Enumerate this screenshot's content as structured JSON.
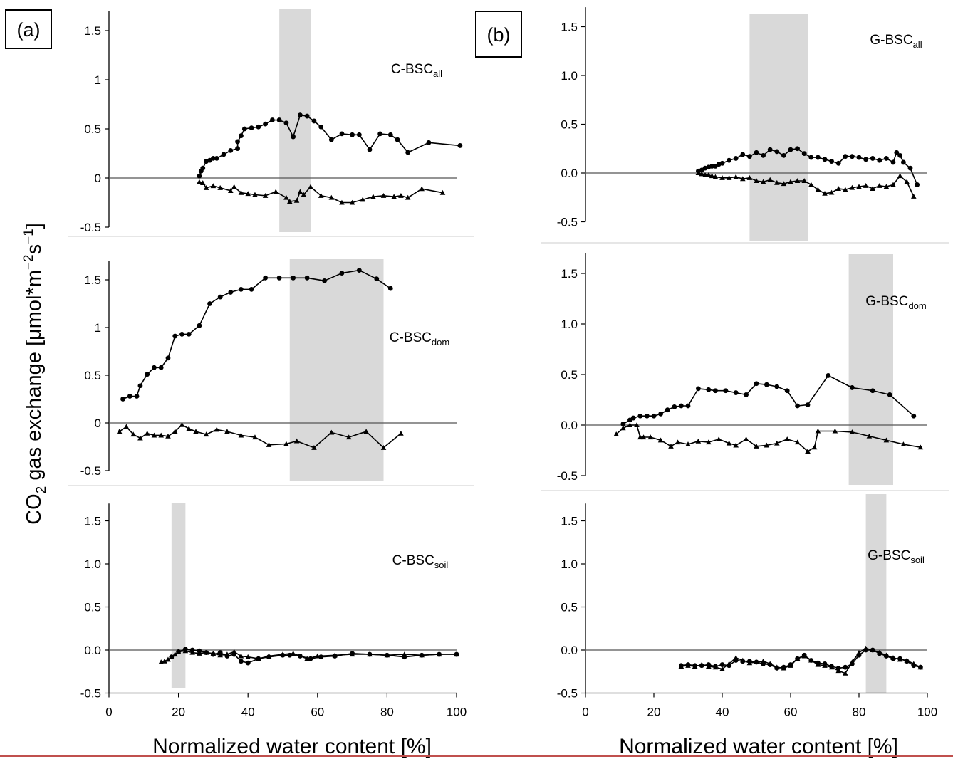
{
  "figure": {
    "y_title_main": "CO",
    "y_title_sub": "2",
    "y_title_rest": " gas exchange [μmol*m",
    "y_title_sup1": "−2",
    "y_title_s": "s",
    "y_title_sup2": "−1",
    "y_title_end": "]",
    "x_title_a": "Normalized water content [%]",
    "x_title_b": "Normalized water content [%]",
    "colors": {
      "grey_band": "#d9d9d9",
      "line": "#000000",
      "footer_rule": "#c0504d"
    }
  },
  "chart_data": [
    {
      "column": "a",
      "tag": "(a)",
      "label_main": "C-BSC",
      "label_sub": "all",
      "type": "line",
      "xlim": [
        0,
        100
      ],
      "ylim": [
        -0.5,
        1.7
      ],
      "yticks": [
        "-0.5",
        "0",
        "0.5",
        "1",
        "1.5"
      ],
      "xticks": [],
      "highlight_x": [
        49,
        58
      ],
      "series": [
        {
          "marker": "circle",
          "x": [
            26,
            26.5,
            27,
            28,
            29,
            30,
            31,
            33,
            35,
            37,
            37,
            38,
            39,
            41,
            43,
            45,
            47,
            49,
            51,
            53,
            55,
            57,
            59,
            61,
            64,
            67,
            70,
            72,
            75,
            78,
            81,
            83,
            86,
            92,
            101
          ],
          "y": [
            0.02,
            0.07,
            0.1,
            0.17,
            0.18,
            0.2,
            0.2,
            0.24,
            0.28,
            0.3,
            0.37,
            0.43,
            0.5,
            0.51,
            0.52,
            0.55,
            0.59,
            0.59,
            0.56,
            0.42,
            0.64,
            0.63,
            0.58,
            0.52,
            0.39,
            0.45,
            0.44,
            0.44,
            0.29,
            0.45,
            0.44,
            0.39,
            0.26,
            0.36,
            0.33
          ]
        },
        {
          "marker": "triangle",
          "x": [
            26,
            27,
            28,
            30,
            32,
            35,
            36,
            38,
            40,
            42,
            45,
            48,
            51,
            52,
            54,
            55,
            56,
            58,
            61,
            64,
            67,
            70,
            73,
            76,
            79,
            82,
            84,
            86,
            90,
            96
          ],
          "y": [
            -0.04,
            -0.05,
            -0.1,
            -0.08,
            -0.1,
            -0.13,
            -0.09,
            -0.15,
            -0.16,
            -0.17,
            -0.18,
            -0.14,
            -0.2,
            -0.24,
            -0.23,
            -0.14,
            -0.17,
            -0.09,
            -0.18,
            -0.2,
            -0.25,
            -0.25,
            -0.22,
            -0.19,
            -0.18,
            -0.19,
            -0.18,
            -0.2,
            -0.11,
            -0.15
          ]
        }
      ]
    },
    {
      "column": "a",
      "tag": "",
      "label_main": "C-BSC",
      "label_sub": "dom",
      "type": "line",
      "xlim": [
        0,
        100
      ],
      "ylim": [
        -0.5,
        1.7
      ],
      "yticks": [
        "-0.5",
        "0",
        "0.5",
        "1",
        "1.5"
      ],
      "xticks": [],
      "highlight_x": [
        52,
        79
      ],
      "series": [
        {
          "marker": "circle",
          "x": [
            4,
            6,
            8,
            9,
            11,
            13,
            15,
            17,
            19,
            21,
            23,
            26,
            29,
            32,
            35,
            38,
            41,
            45,
            49,
            53,
            57,
            62,
            67,
            72,
            77,
            81
          ],
          "y": [
            0.25,
            0.28,
            0.28,
            0.39,
            0.51,
            0.58,
            0.58,
            0.68,
            0.91,
            0.93,
            0.93,
            1.02,
            1.25,
            1.32,
            1.37,
            1.4,
            1.4,
            1.52,
            1.52,
            1.52,
            1.52,
            1.49,
            1.57,
            1.6,
            1.51,
            1.41
          ]
        },
        {
          "marker": "triangle",
          "x": [
            3,
            5,
            7,
            9,
            11,
            13,
            15,
            17,
            19,
            21,
            23,
            25,
            28,
            31,
            34,
            38,
            42,
            46,
            51,
            54,
            59,
            64,
            69,
            74,
            79,
            84
          ],
          "y": [
            -0.09,
            -0.04,
            -0.12,
            -0.16,
            -0.11,
            -0.13,
            -0.13,
            -0.14,
            -0.09,
            -0.02,
            -0.06,
            -0.09,
            -0.12,
            -0.07,
            -0.09,
            -0.13,
            -0.15,
            -0.23,
            -0.22,
            -0.19,
            -0.26,
            -0.1,
            -0.15,
            -0.09,
            -0.26,
            -0.11
          ]
        }
      ]
    },
    {
      "column": "a",
      "tag": "",
      "label_main": "C-BSC",
      "label_sub": "soil",
      "type": "line",
      "xlim": [
        0,
        100
      ],
      "ylim": [
        -0.5,
        1.7
      ],
      "yticks": [
        "-0.5",
        "0.0",
        "0.5",
        "1.0",
        "1.5"
      ],
      "xticks": [
        "0",
        "20",
        "40",
        "60",
        "80",
        "100"
      ],
      "highlight_x": [
        18,
        22
      ],
      "series": [
        {
          "marker": "circle",
          "x": [
            18,
            20,
            22,
            24,
            26,
            28,
            30,
            32,
            34,
            36,
            38,
            40,
            43,
            46,
            50,
            52,
            55,
            58,
            61,
            65,
            70,
            75,
            80,
            85,
            90,
            95,
            100
          ],
          "y": [
            -0.08,
            -0.02,
            0.01,
            0.0,
            -0.01,
            -0.03,
            -0.05,
            -0.03,
            -0.07,
            -0.05,
            -0.13,
            -0.15,
            -0.1,
            -0.08,
            -0.06,
            -0.06,
            -0.07,
            -0.1,
            -0.08,
            -0.07,
            -0.04,
            -0.05,
            -0.06,
            -0.08,
            -0.06,
            -0.05,
            -0.05
          ]
        },
        {
          "marker": "triangle",
          "x": [
            15,
            16,
            17,
            18,
            19,
            20,
            22,
            24,
            26,
            28,
            30,
            32,
            34,
            36,
            38,
            40,
            43,
            46,
            50,
            53,
            57,
            60,
            65,
            70,
            75,
            80,
            85,
            90,
            95,
            100
          ],
          "y": [
            -0.14,
            -0.13,
            -0.11,
            -0.08,
            -0.05,
            -0.02,
            -0.01,
            -0.03,
            -0.04,
            -0.03,
            -0.04,
            -0.06,
            -0.05,
            -0.02,
            -0.07,
            -0.08,
            -0.1,
            -0.07,
            -0.05,
            -0.04,
            -0.1,
            -0.07,
            -0.06,
            -0.05,
            -0.05,
            -0.06,
            -0.05,
            -0.06,
            -0.05,
            -0.05
          ]
        }
      ]
    },
    {
      "column": "b",
      "tag": "(b)",
      "label_main": "G-BSC",
      "label_sub": "all",
      "type": "line",
      "xlim": [
        0,
        100
      ],
      "ylim": [
        -0.5,
        1.7
      ],
      "yticks": [
        "-0.5",
        "0.0",
        "0.5",
        "1.0",
        "1.5"
      ],
      "xticks": [],
      "highlight_x": [
        48,
        65
      ],
      "series": [
        {
          "marker": "circle",
          "x": [
            33,
            34,
            35,
            36,
            37,
            38,
            39,
            40,
            42,
            44,
            46,
            48,
            50,
            52,
            54,
            56,
            58,
            60,
            62,
            64,
            66,
            68,
            70,
            72,
            74,
            76,
            78,
            80,
            82,
            84,
            86,
            88,
            90,
            91,
            92,
            93,
            95,
            97
          ],
          "y": [
            0.02,
            0.03,
            0.05,
            0.06,
            0.07,
            0.07,
            0.09,
            0.1,
            0.13,
            0.15,
            0.19,
            0.17,
            0.21,
            0.18,
            0.24,
            0.22,
            0.18,
            0.24,
            0.25,
            0.2,
            0.16,
            0.16,
            0.14,
            0.12,
            0.1,
            0.17,
            0.17,
            0.16,
            0.14,
            0.15,
            0.13,
            0.15,
            0.11,
            0.21,
            0.18,
            0.11,
            0.05,
            -0.12
          ]
        },
        {
          "marker": "triangle",
          "x": [
            33,
            34,
            35,
            36,
            37,
            38,
            40,
            42,
            44,
            46,
            48,
            50,
            52,
            54,
            56,
            58,
            60,
            62,
            64,
            66,
            68,
            70,
            72,
            74,
            76,
            78,
            80,
            82,
            84,
            86,
            88,
            90,
            92,
            94,
            96
          ],
          "y": [
            0.0,
            -0.01,
            -0.02,
            -0.02,
            -0.03,
            -0.04,
            -0.05,
            -0.05,
            -0.04,
            -0.06,
            -0.05,
            -0.08,
            -0.09,
            -0.07,
            -0.1,
            -0.11,
            -0.09,
            -0.08,
            -0.08,
            -0.12,
            -0.17,
            -0.21,
            -0.2,
            -0.16,
            -0.17,
            -0.15,
            -0.14,
            -0.13,
            -0.16,
            -0.13,
            -0.14,
            -0.12,
            -0.03,
            -0.09,
            -0.24
          ]
        }
      ]
    },
    {
      "column": "b",
      "tag": "",
      "label_main": "G-BSC",
      "label_sub": "dom",
      "type": "line",
      "xlim": [
        0,
        100
      ],
      "ylim": [
        -0.5,
        1.7
      ],
      "yticks": [
        "-0.5",
        "0.0",
        "0.5",
        "1.0",
        "1.5"
      ],
      "xticks": [],
      "highlight_x": [
        77,
        90
      ],
      "series": [
        {
          "marker": "circle",
          "x": [
            11,
            13,
            14,
            16,
            18,
            20,
            22,
            24,
            26,
            28,
            30,
            33,
            36,
            38,
            41,
            44,
            47,
            50,
            53,
            56,
            59,
            62,
            65,
            71,
            78,
            84,
            89,
            96
          ],
          "y": [
            0.01,
            0.05,
            0.07,
            0.09,
            0.09,
            0.09,
            0.11,
            0.15,
            0.18,
            0.19,
            0.19,
            0.36,
            0.35,
            0.34,
            0.34,
            0.32,
            0.3,
            0.41,
            0.4,
            0.38,
            0.34,
            0.19,
            0.2,
            0.49,
            0.37,
            0.34,
            0.3,
            0.09
          ]
        },
        {
          "marker": "triangle",
          "x": [
            9,
            11,
            13,
            15,
            16,
            17,
            19,
            22,
            25,
            27,
            30,
            33,
            36,
            39,
            42,
            44,
            47,
            50,
            53,
            56,
            59,
            62,
            65,
            67,
            68,
            73,
            78,
            83,
            88,
            93,
            98
          ],
          "y": [
            -0.09,
            -0.03,
            0.0,
            0.0,
            -0.12,
            -0.12,
            -0.12,
            -0.15,
            -0.21,
            -0.17,
            -0.19,
            -0.16,
            -0.17,
            -0.14,
            -0.18,
            -0.2,
            -0.14,
            -0.21,
            -0.2,
            -0.18,
            -0.14,
            -0.17,
            -0.26,
            -0.22,
            -0.06,
            -0.06,
            -0.07,
            -0.11,
            -0.15,
            -0.19,
            -0.22
          ]
        }
      ]
    },
    {
      "column": "b",
      "tag": "",
      "label_main": "G-BSC",
      "label_sub": "soil",
      "type": "line",
      "xlim": [
        0,
        100
      ],
      "ylim": [
        -0.5,
        1.7
      ],
      "yticks": [
        "-0.5",
        "0.0",
        "0.5",
        "1.0",
        "1.5"
      ],
      "xticks": [
        "0",
        "20",
        "40",
        "60",
        "80",
        "100"
      ],
      "highlight_x": [
        82,
        88
      ],
      "series": [
        {
          "marker": "circle",
          "x": [
            28,
            30,
            32,
            34,
            36,
            38,
            40,
            42,
            44,
            46,
            48,
            50,
            52,
            54,
            56,
            58,
            60,
            62,
            64,
            66,
            68,
            70,
            72,
            74,
            76,
            78,
            80,
            82,
            84,
            86,
            88,
            90,
            92,
            94,
            96,
            98
          ],
          "y": [
            -0.18,
            -0.17,
            -0.18,
            -0.18,
            -0.17,
            -0.19,
            -0.17,
            -0.18,
            -0.12,
            -0.13,
            -0.13,
            -0.14,
            -0.16,
            -0.17,
            -0.21,
            -0.2,
            -0.17,
            -0.1,
            -0.06,
            -0.12,
            -0.15,
            -0.16,
            -0.19,
            -0.21,
            -0.2,
            -0.16,
            -0.06,
            0.0,
            0.0,
            -0.04,
            -0.07,
            -0.1,
            -0.1,
            -0.13,
            -0.18,
            -0.2
          ]
        },
        {
          "marker": "triangle",
          "x": [
            28,
            30,
            32,
            34,
            36,
            38,
            40,
            42,
            44,
            46,
            48,
            50,
            52,
            54,
            56,
            58,
            60,
            62,
            64,
            66,
            68,
            70,
            72,
            74,
            76,
            78,
            80,
            82,
            84,
            86,
            88,
            90,
            92,
            94,
            96,
            98
          ],
          "y": [
            -0.19,
            -0.18,
            -0.19,
            -0.17,
            -0.19,
            -0.2,
            -0.22,
            -0.16,
            -0.09,
            -0.12,
            -0.15,
            -0.14,
            -0.13,
            -0.16,
            -0.2,
            -0.21,
            -0.18,
            -0.1,
            -0.07,
            -0.12,
            -0.17,
            -0.18,
            -0.2,
            -0.24,
            -0.27,
            -0.14,
            -0.03,
            0.02,
            0.0,
            -0.03,
            -0.06,
            -0.09,
            -0.11,
            -0.12,
            -0.16,
            -0.2
          ]
        }
      ]
    }
  ]
}
